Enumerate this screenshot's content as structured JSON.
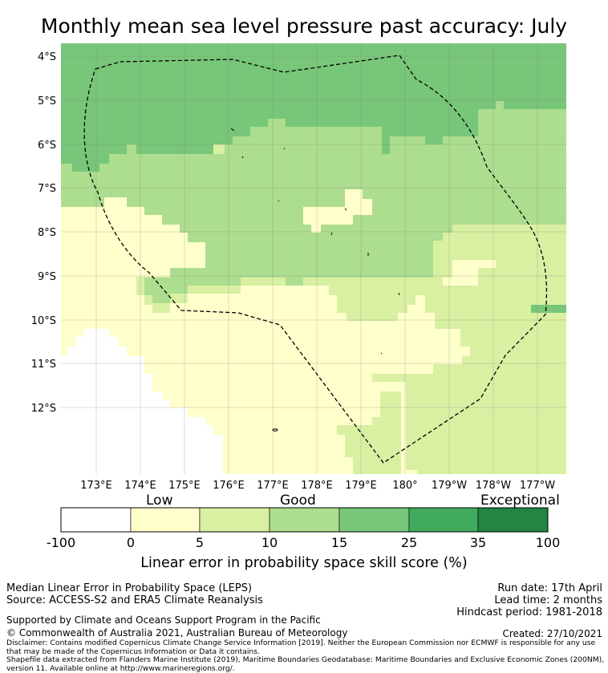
{
  "title": "Monthly mean sea level pressure past accuracy: July",
  "map": {
    "lat_ticks": [
      "4°S",
      "5°S",
      "6°S",
      "7°S",
      "8°S",
      "9°S",
      "10°S",
      "11°S",
      "12°S"
    ],
    "lon_ticks": [
      "173°E",
      "174°E",
      "175°E",
      "176°E",
      "177°E",
      "178°E",
      "179°E",
      "180°",
      "179°W",
      "178°W",
      "177°W"
    ],
    "boundary": "Maritime Boundaries (EEZ) - dashed outline"
  },
  "colorbar": {
    "category_labels": [
      "Low",
      "Good",
      "Exceptional"
    ],
    "ticks": [
      "-100",
      "0",
      "5",
      "10",
      "15",
      "25",
      "35",
      "100"
    ],
    "bins": [
      {
        "from": "-100",
        "to": "0",
        "color": "#ffffff"
      },
      {
        "from": "0",
        "to": "5",
        "color": "#ffffcc"
      },
      {
        "from": "5",
        "to": "10",
        "color": "#d9f0a3"
      },
      {
        "from": "10",
        "to": "15",
        "color": "#addd8e"
      },
      {
        "from": "15",
        "to": "25",
        "color": "#78c679"
      },
      {
        "from": "25",
        "to": "35",
        "color": "#41ab5d"
      },
      {
        "from": "35",
        "to": "100",
        "color": "#238443"
      }
    ],
    "title": "Linear error in probability space skill score (%)"
  },
  "footer": {
    "line1": "Median Linear Error in Probability Space (LEPS)",
    "line2": "Source: ACCESS-S2 and ERA5 Climate Reanalysis",
    "run_date": "Run date: 17th April",
    "lead_time": "Lead time: 2 months",
    "hindcast": "Hindcast period: 1981-2018",
    "supported": "Supported by Climate and Oceans Support Program in the Pacific",
    "copyright": "© Commonwealth of Australia 2021, Australian Bureau of Meteorology",
    "created": "Created: 27/10/2021",
    "disclaimer": "Disclaimer: Contains modified Copernicus Climate Change Service Information [2019]. Neither the European Commission nor ECMWF is responsible for any use that may be made of the Copernicus Information or Data it contains.",
    "shapefile": "Shapefile data extracted from Flanders Marine Institute (2019), Maritime Boundaries Geodatabase: Maritime Boundaries and Exclusive Economic Zones (200NM), version 11. Available online at http://www.marineregions.org/."
  }
}
